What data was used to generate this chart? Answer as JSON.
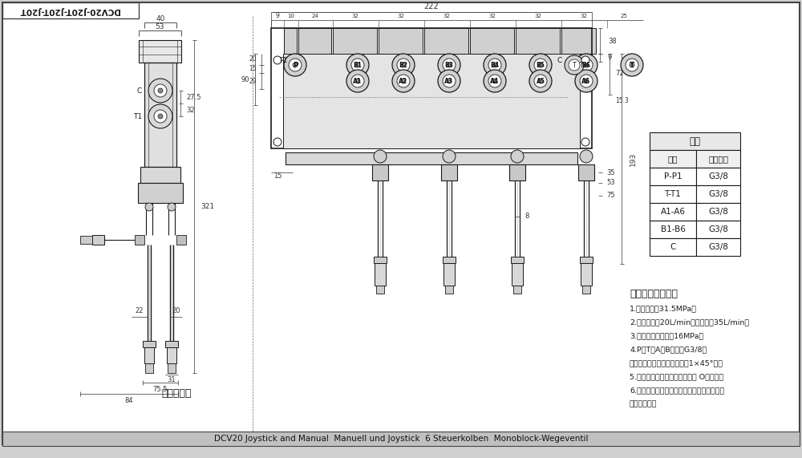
{
  "title": "DCV20-J20T-J20T-J20T",
  "bg_color": "#f5f5f5",
  "line_color": "#1a1a1a",
  "table_title": "阀体",
  "table_headers": [
    "接口",
    "螺纹规格"
  ],
  "table_rows": [
    [
      "P-P1",
      "G3/8"
    ],
    [
      "T-T1",
      "G3/8"
    ],
    [
      "A1-A6",
      "G3/8"
    ],
    [
      "B1-B6",
      "G3/8"
    ],
    [
      "C",
      "G3/8"
    ]
  ],
  "tech_title": "技术要求及参数：",
  "tech_lines": [
    "1.额定压力：31.5MPa；",
    "2.额定流量：20L/min。最大流量35L/min；",
    "3.安装阀调定压力：16MPa；",
    "4.P、T、A、B口均为G3/8，",
    "均为平面密封，螺纹孔口倒角1×45°角。",
    "5.控制方式：手动、弹簧复位。 O型阆杆；",
    "6.阀体表面磷化处理，安全阀及螺旋锡锯，支",
    "架后盖为铝色"
  ],
  "bottom_title": "液压原理图",
  "bottom_bar": "DCV20 Joystick and Manual  Manuell und Joystick  6 Steuerkolben  Monoblock-Wegeventil"
}
